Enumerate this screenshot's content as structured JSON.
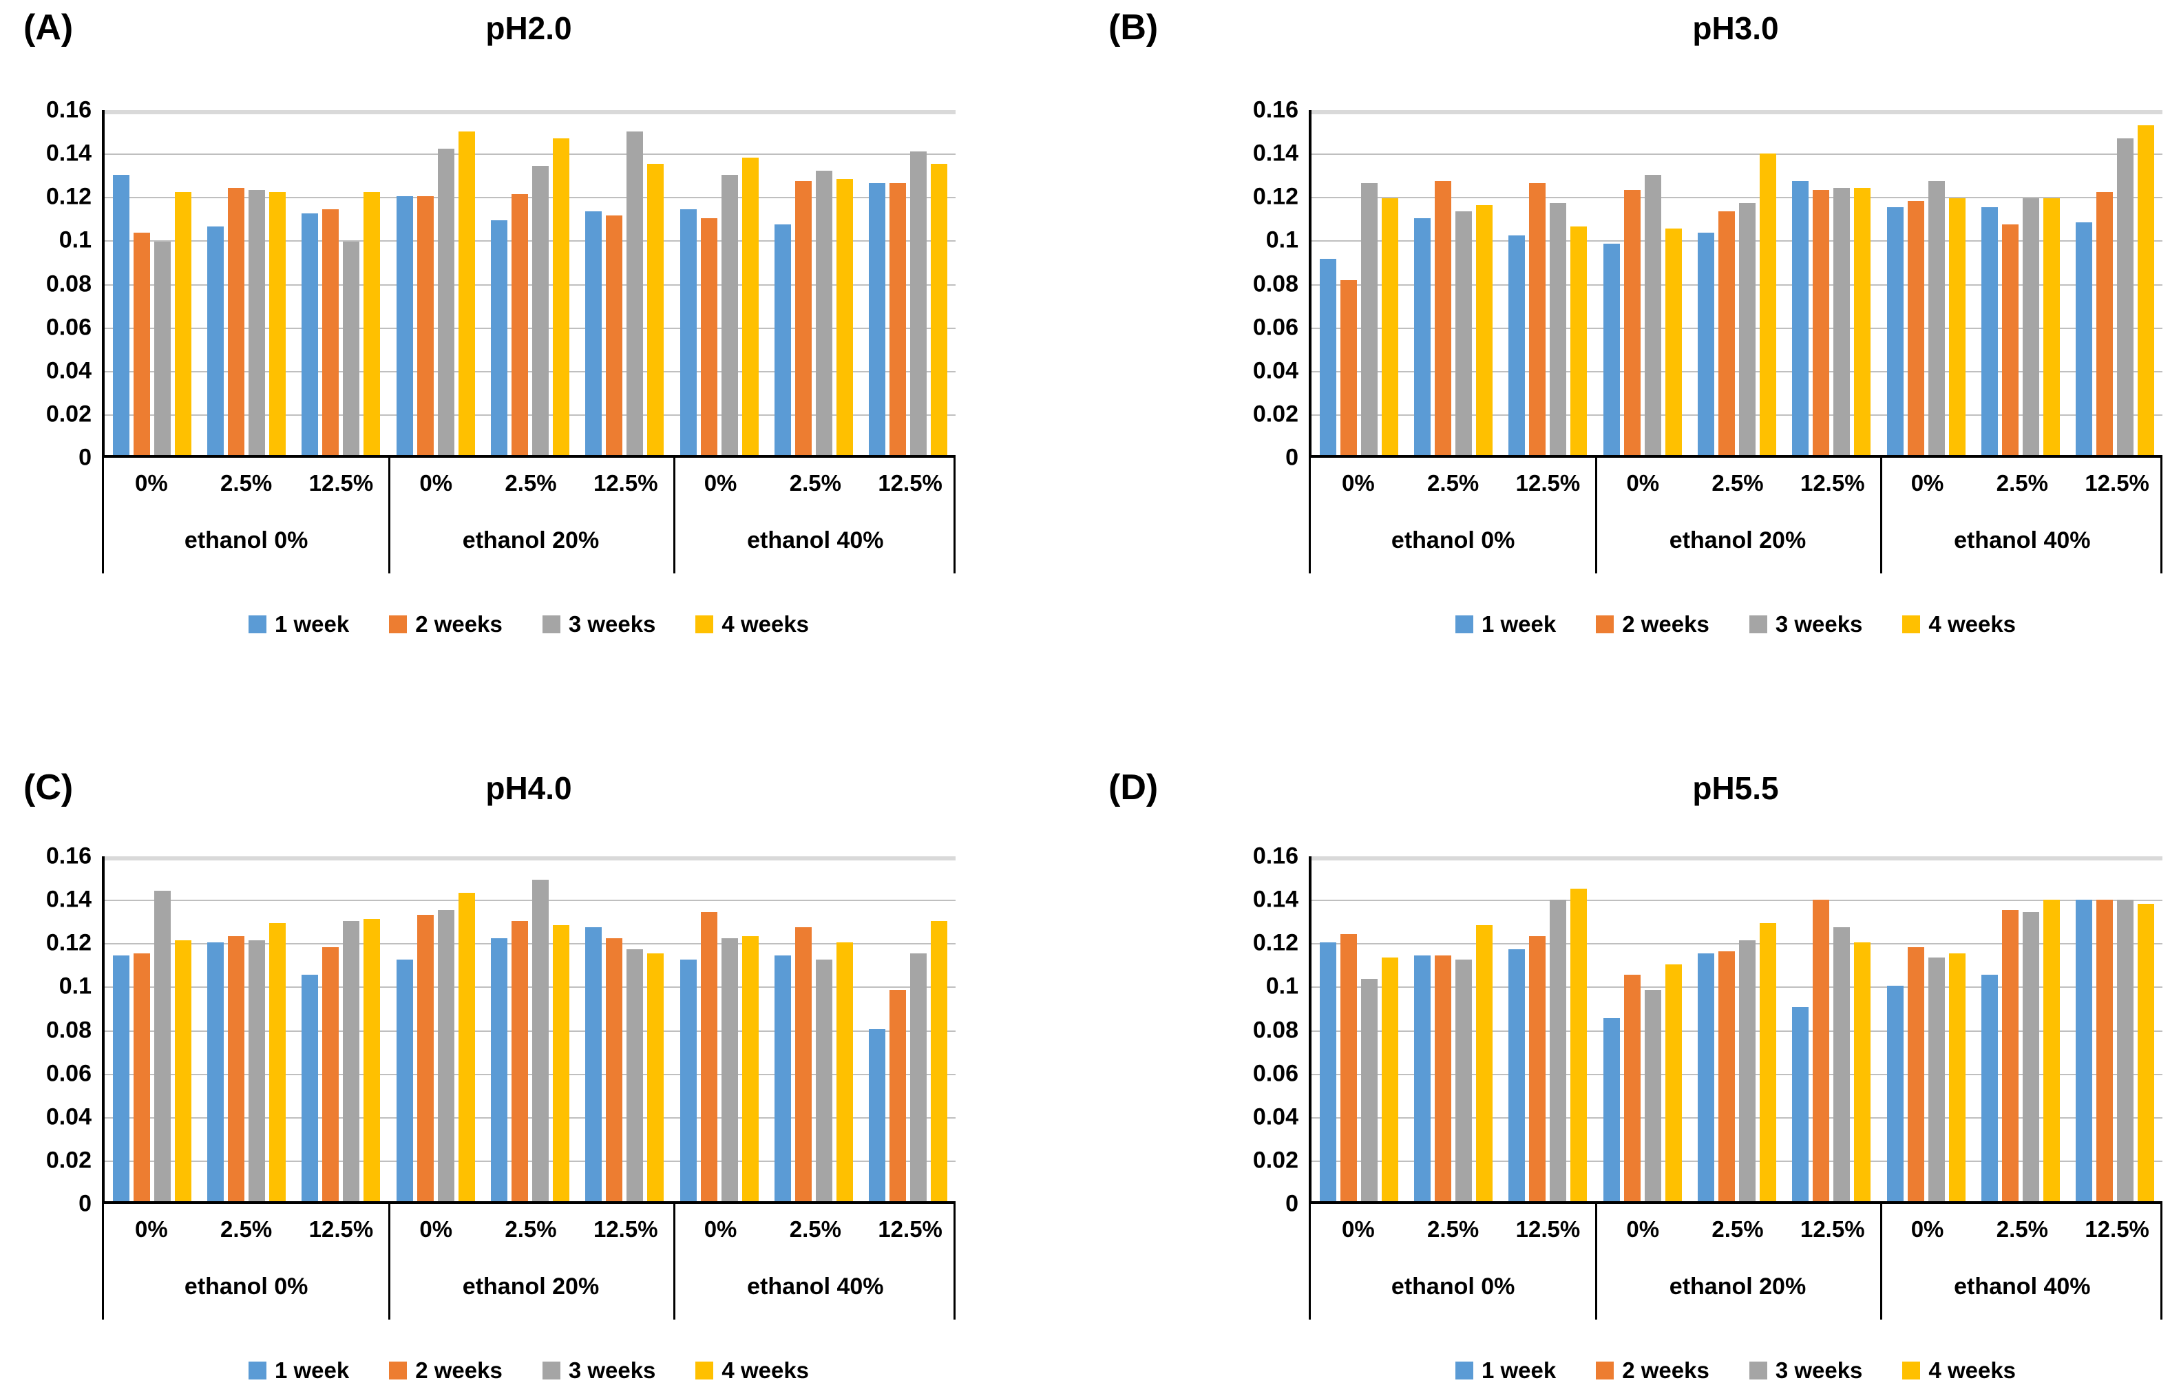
{
  "colors": {
    "week1": "#5B9BD5",
    "week2": "#ED7D31",
    "week3": "#A5A5A5",
    "week4": "#FFC000",
    "gridline": "#BFBFBF",
    "axis": "#000000"
  },
  "legend": {
    "items": [
      {
        "label": "1 week",
        "color": "#5B9BD5"
      },
      {
        "label": "2 weeks",
        "color": "#ED7D31"
      },
      {
        "label": "3 weeks",
        "color": "#A5A5A5"
      },
      {
        "label": "4 weeks",
        "color": "#FFC000"
      }
    ]
  },
  "y_axis": {
    "ticks": [
      "0.16",
      "0.14",
      "0.12",
      "0.1",
      "0.08",
      "0.06",
      "0.04",
      "0.02",
      "0"
    ],
    "max": 0.16,
    "min": 0
  },
  "x_axis": {
    "concentrations": [
      "0%",
      "2.5%",
      "12.5%"
    ],
    "sections": [
      "ethanol 0%",
      "ethanol 20%",
      "ethanol 40%"
    ]
  },
  "chart_data": [
    {
      "panel_label": "(A)",
      "title": "pH2.0",
      "type": "bar",
      "ylim": [
        0,
        0.16
      ],
      "grid": true,
      "legend_position": "bottom",
      "categories": [
        "0%",
        "2.5%",
        "12.5%",
        "0%",
        "2.5%",
        "12.5%",
        "0%",
        "2.5%",
        "12.5%"
      ],
      "section_labels": [
        "ethanol 0%",
        "ethanol 20%",
        "ethanol 40%"
      ],
      "series": [
        {
          "name": "1 week",
          "values": [
            0.13,
            0.106,
            0.112,
            0.12,
            0.109,
            0.113,
            0.114,
            0.107,
            0.126
          ]
        },
        {
          "name": "2 weeks",
          "values": [
            0.103,
            0.124,
            0.114,
            0.12,
            0.121,
            0.111,
            0.11,
            0.127,
            0.126
          ]
        },
        {
          "name": "3 weeks",
          "values": [
            0.099,
            0.123,
            0.099,
            0.142,
            0.134,
            0.15,
            0.13,
            0.132,
            0.141
          ]
        },
        {
          "name": "4 weeks",
          "values": [
            0.122,
            0.122,
            0.122,
            0.15,
            0.147,
            0.135,
            0.138,
            0.128,
            0.135
          ]
        }
      ]
    },
    {
      "panel_label": "(B)",
      "title": "pH3.0",
      "type": "bar",
      "ylim": [
        0,
        0.16
      ],
      "grid": true,
      "legend_position": "bottom",
      "categories": [
        "0%",
        "2.5%",
        "12.5%",
        "0%",
        "2.5%",
        "12.5%",
        "0%",
        "2.5%",
        "12.5%"
      ],
      "section_labels": [
        "ethanol 0%",
        "ethanol 20%",
        "ethanol 40%"
      ],
      "series": [
        {
          "name": "1 week",
          "values": [
            0.091,
            0.11,
            0.102,
            0.098,
            0.103,
            0.127,
            0.115,
            0.115,
            0.108
          ]
        },
        {
          "name": "2 weeks",
          "values": [
            0.081,
            0.127,
            0.126,
            0.123,
            0.113,
            0.123,
            0.118,
            0.107,
            0.122
          ]
        },
        {
          "name": "3 weeks",
          "values": [
            0.126,
            0.113,
            0.117,
            0.13,
            0.117,
            0.124,
            0.127,
            0.119,
            0.147
          ]
        },
        {
          "name": "4 weeks",
          "values": [
            0.119,
            0.116,
            0.106,
            0.105,
            0.14,
            0.124,
            0.119,
            0.119,
            0.153
          ]
        }
      ]
    },
    {
      "panel_label": "(C)",
      "title": "pH4.0",
      "type": "bar",
      "ylim": [
        0,
        0.16
      ],
      "grid": true,
      "legend_position": "bottom",
      "categories": [
        "0%",
        "2.5%",
        "12.5%",
        "0%",
        "2.5%",
        "12.5%",
        "0%",
        "2.5%",
        "12.5%"
      ],
      "section_labels": [
        "ethanol 0%",
        "ethanol 20%",
        "ethanol 40%"
      ],
      "series": [
        {
          "name": "1 week",
          "values": [
            0.114,
            0.12,
            0.105,
            0.112,
            0.122,
            0.127,
            0.112,
            0.114,
            0.08
          ]
        },
        {
          "name": "2 weeks",
          "values": [
            0.115,
            0.123,
            0.118,
            0.133,
            0.13,
            0.122,
            0.134,
            0.127,
            0.098
          ]
        },
        {
          "name": "3 weeks",
          "values": [
            0.144,
            0.121,
            0.13,
            0.135,
            0.149,
            0.117,
            0.122,
            0.112,
            0.115
          ]
        },
        {
          "name": "4 weeks",
          "values": [
            0.121,
            0.129,
            0.131,
            0.143,
            0.128,
            0.115,
            0.123,
            0.12,
            0.13
          ]
        }
      ]
    },
    {
      "panel_label": "(D)",
      "title": "pH5.5",
      "type": "bar",
      "ylim": [
        0,
        0.16
      ],
      "grid": true,
      "legend_position": "bottom",
      "categories": [
        "0%",
        "2.5%",
        "12.5%",
        "0%",
        "2.5%",
        "12.5%",
        "0%",
        "2.5%",
        "12.5%"
      ],
      "section_labels": [
        "ethanol 0%",
        "ethanol 20%",
        "ethanol 40%"
      ],
      "series": [
        {
          "name": "1 week",
          "values": [
            0.12,
            0.114,
            0.117,
            0.085,
            0.115,
            0.09,
            0.1,
            0.105,
            0.14
          ]
        },
        {
          "name": "2 weeks",
          "values": [
            0.124,
            0.114,
            0.123,
            0.105,
            0.116,
            0.14,
            0.118,
            0.135,
            0.14
          ]
        },
        {
          "name": "3 weeks",
          "values": [
            0.103,
            0.112,
            0.14,
            0.098,
            0.121,
            0.127,
            0.113,
            0.134,
            0.14
          ]
        },
        {
          "name": "4 weeks",
          "values": [
            0.113,
            0.128,
            0.145,
            0.11,
            0.129,
            0.12,
            0.115,
            0.14,
            0.138
          ]
        }
      ]
    }
  ]
}
